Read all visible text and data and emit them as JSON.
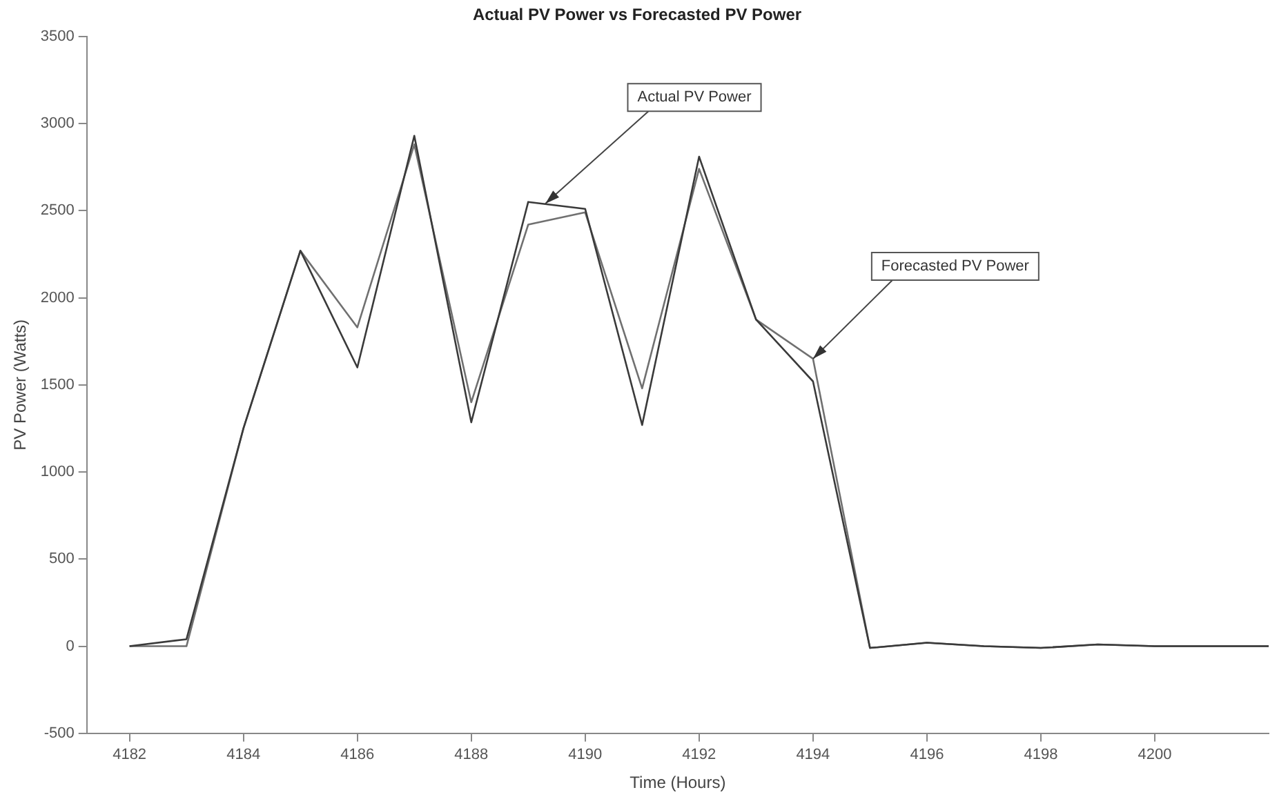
{
  "chart_data": {
    "type": "line",
    "title": "Actual PV Power vs Forecasted PV Power",
    "xlabel": "Time (Hours)",
    "ylabel": "PV Power (Watts)",
    "x": [
      4182,
      4183,
      4184,
      4185,
      4186,
      4187,
      4188,
      4189,
      4190,
      4191,
      4192,
      4193,
      4194,
      4195,
      4196,
      4197,
      4198,
      4199,
      4200,
      4201,
      4202
    ],
    "series": [
      {
        "color": "#3a3a3a",
        "values": [
          0,
          40,
          1250,
          2270,
          1600,
          2930,
          1285,
          2550,
          2510,
          1270,
          2810,
          1875,
          1520,
          -10,
          20,
          0,
          -10,
          10,
          0,
          0,
          0
        ]
      },
      {
        "color": "#707070",
        "values": [
          0,
          0,
          1250,
          2270,
          1830,
          2880,
          1400,
          2420,
          2490,
          1480,
          2740,
          1875,
          1650,
          -10,
          20,
          0,
          -10,
          10,
          0,
          0,
          0
        ]
      }
    ],
    "xlim": [
      4181.25,
      4202
    ],
    "xticks": [
      4182,
      4184,
      4186,
      4188,
      4190,
      4192,
      4194,
      4196,
      4198,
      4200
    ],
    "ylim": [
      -500,
      3500
    ],
    "yticks": [
      -500,
      0,
      500,
      1000,
      1500,
      2000,
      2500,
      3000,
      3500
    ],
    "grid": false,
    "legend": false,
    "marker": "none",
    "line_style": "solid",
    "annotations": [
      {
        "text": "Actual PV Power",
        "x": 4189.3,
        "y": 2540
      },
      {
        "text": "Forecasted PV Power",
        "x": 4194,
        "y": 1650
      }
    ]
  }
}
